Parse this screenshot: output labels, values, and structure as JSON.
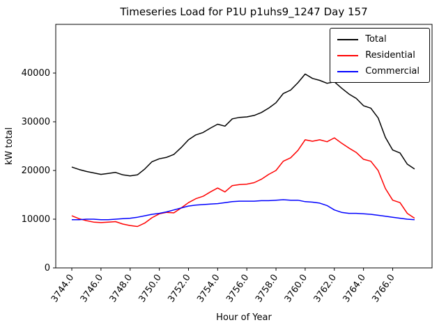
{
  "chart_data": {
    "type": "line",
    "title": "Timeseries Load for P1U p1uhs9_1247  Day 157",
    "xlabel": "Hour of Year",
    "ylabel": "kW total",
    "xlim": [
      3742.9,
      3768.7
    ],
    "ylim": [
      0,
      50000
    ],
    "x_ticks": [
      3744,
      3746,
      3748,
      3750,
      3752,
      3754,
      3756,
      3758,
      3760,
      3762,
      3764,
      3766
    ],
    "y_ticks": [
      0,
      10000,
      20000,
      30000,
      40000
    ],
    "grid": false,
    "legend_position": "upper right",
    "x": [
      3744.0,
      3744.5,
      3745.0,
      3745.5,
      3746.0,
      3746.5,
      3747.0,
      3747.5,
      3748.0,
      3748.5,
      3749.0,
      3749.5,
      3750.0,
      3750.5,
      3751.0,
      3751.5,
      3752.0,
      3752.5,
      3753.0,
      3753.5,
      3754.0,
      3754.5,
      3755.0,
      3755.5,
      3756.0,
      3756.5,
      3757.0,
      3757.5,
      3758.0,
      3758.5,
      3759.0,
      3759.5,
      3760.0,
      3760.5,
      3761.0,
      3761.5,
      3762.0,
      3762.5,
      3763.0,
      3763.5,
      3764.0,
      3764.5,
      3765.0,
      3765.5,
      3766.0,
      3766.5,
      3767.0,
      3767.5
    ],
    "series": [
      {
        "name": "Total",
        "color": "#000000",
        "values": [
          20700,
          20200,
          19800,
          19500,
          19200,
          19400,
          19600,
          19100,
          18900,
          19100,
          20300,
          21800,
          22400,
          22700,
          23300,
          24700,
          26300,
          27300,
          27800,
          28700,
          29500,
          29100,
          30600,
          30900,
          31000,
          31300,
          31900,
          32800,
          33900,
          35800,
          36500,
          38000,
          39800,
          38900,
          38500,
          37900,
          38200,
          36900,
          35700,
          34800,
          33300,
          32800,
          30800,
          26800,
          24200,
          23600,
          21300,
          20300
        ]
      },
      {
        "name": "Residential",
        "color": "#ff0000",
        "values": [
          10700,
          10100,
          9700,
          9400,
          9300,
          9400,
          9500,
          9000,
          8700,
          8500,
          9200,
          10300,
          11100,
          11400,
          11300,
          12300,
          13400,
          14200,
          14700,
          15600,
          16400,
          15600,
          16900,
          17100,
          17200,
          17500,
          18200,
          19200,
          20000,
          21900,
          22600,
          24100,
          26300,
          26000,
          26300,
          25900,
          26700,
          25600,
          24600,
          23700,
          22300,
          21900,
          20000,
          16300,
          13900,
          13400,
          11200,
          10200
        ]
      },
      {
        "name": "Commercial",
        "color": "#0000ff",
        "values": [
          9900,
          9900,
          10000,
          10000,
          9900,
          9900,
          10000,
          10100,
          10200,
          10400,
          10700,
          11000,
          11200,
          11500,
          11900,
          12300,
          12700,
          12900,
          13000,
          13100,
          13200,
          13400,
          13600,
          13700,
          13700,
          13700,
          13800,
          13800,
          13900,
          14000,
          13900,
          13900,
          13600,
          13500,
          13300,
          12800,
          11900,
          11400,
          11200,
          11200,
          11100,
          11000,
          10800,
          10600,
          10400,
          10200,
          10000,
          9900
        ]
      }
    ]
  }
}
